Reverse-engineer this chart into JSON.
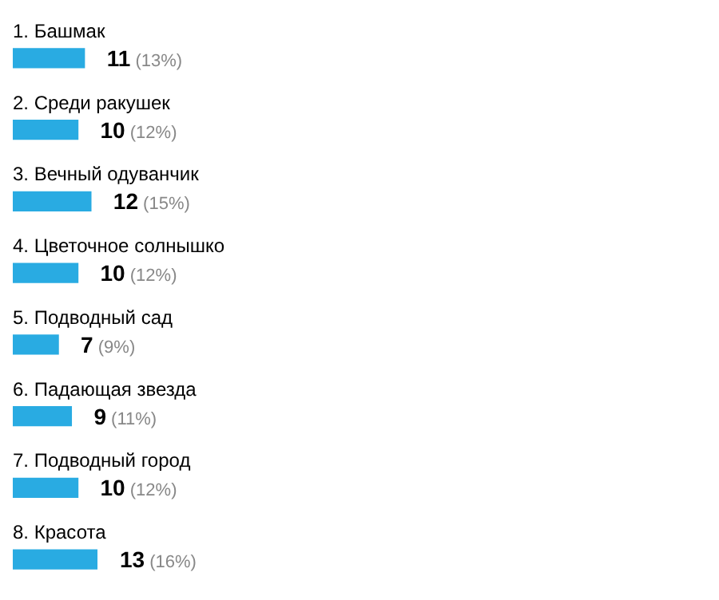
{
  "chart_data": {
    "type": "bar",
    "orientation": "horizontal",
    "categories": [
      "1. Башмак",
      "2. Среди ракушек",
      "3. Вечный одуванчик",
      "4. Цветочное солнышко",
      "5. Подводный сад",
      "6. Падающая звезда",
      "7. Подводный город",
      "8. Красота"
    ],
    "values": [
      11,
      10,
      12,
      10,
      7,
      9,
      10,
      13
    ],
    "value_labels": [
      "11 (13%)",
      "10 (12%)",
      "12 (15%)",
      "10 (12%)",
      "7 (9%)",
      "9 (11%)",
      "10 (12%)",
      "13 (16%)"
    ],
    "color": "#29abe2"
  }
}
